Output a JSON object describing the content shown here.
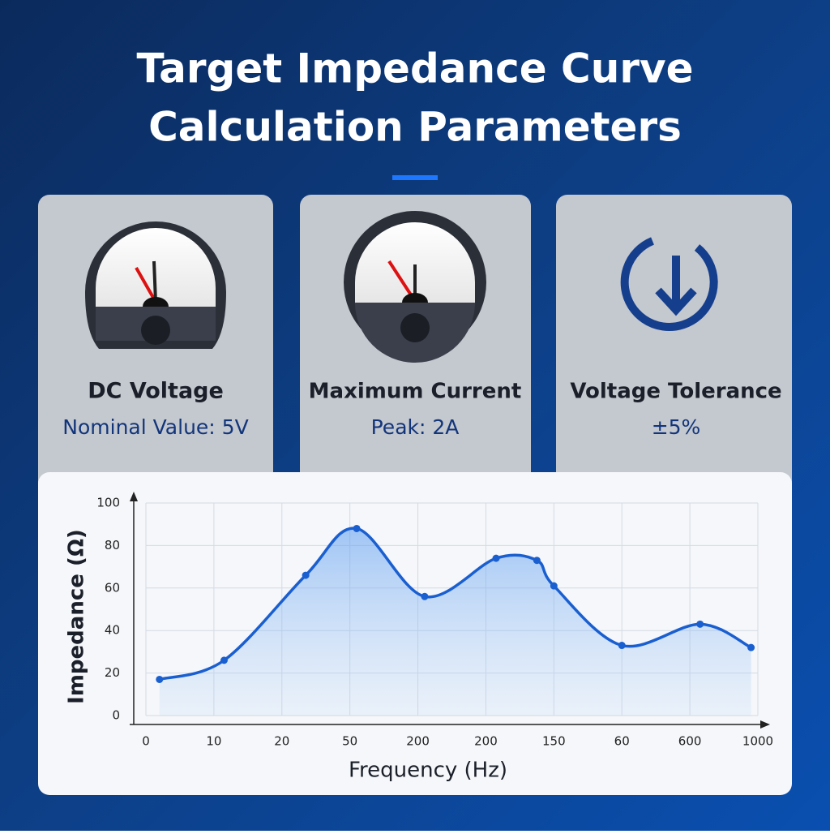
{
  "header": {
    "title_lines": [
      "Target Impedance Curve",
      "Calculation Parameters"
    ]
  },
  "cards": [
    {
      "title": "DC Voltage",
      "value": "Nominal Value: 5V"
    },
    {
      "title": "Maximum Current",
      "value": "Peak: 2A"
    },
    {
      "title": "Voltage Tolerance",
      "value": "±5%"
    }
  ],
  "chart_data": {
    "type": "line",
    "y_label": "Impedance (Ω)",
    "x_label": "Frequency (Hz)",
    "color": "#1a5fd0",
    "area": true,
    "grid": true,
    "x": [
      0.2,
      1.15,
      2.35,
      3.1,
      4.1,
      5.15,
      5.75,
      6.0,
      7.0,
      8.15,
      8.9
    ],
    "values": [
      17,
      26,
      66,
      88,
      56,
      74,
      73,
      61,
      33,
      43,
      32
    ],
    "xlim": [
      0,
      9
    ],
    "xticks": [
      {
        "value": 0,
        "label": "0"
      },
      {
        "value": 1,
        "label": "10"
      },
      {
        "value": 2,
        "label": "20"
      },
      {
        "value": 3,
        "label": "50"
      },
      {
        "value": 4,
        "label": "200"
      },
      {
        "value": 5,
        "label": "200"
      },
      {
        "value": 6,
        "label": "150"
      },
      {
        "value": 7,
        "label": "60"
      },
      {
        "value": 8,
        "label": "600"
      },
      {
        "value": 9,
        "label": "1000"
      }
    ],
    "ylim": [
      0,
      100
    ],
    "yticks": [
      0,
      20,
      40,
      60,
      80,
      100
    ]
  }
}
